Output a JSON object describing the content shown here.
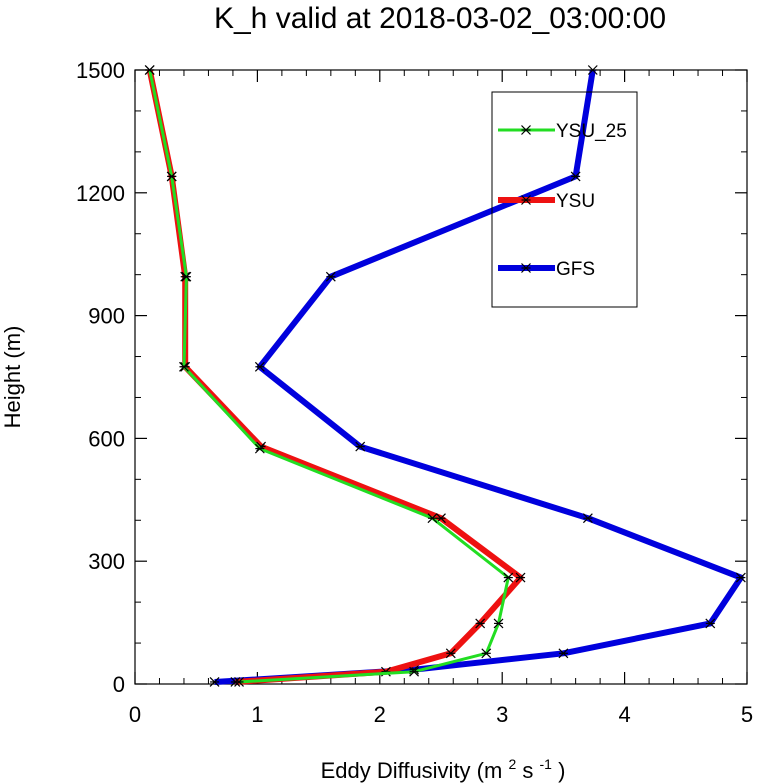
{
  "chart_data": {
    "type": "line",
    "title": "K_h valid at 2018-03-02_03:00:00",
    "xlabel_main": "Eddy Diffusivity (m",
    "xlabel_sup1": "2",
    "xlabel_mid": " s",
    "xlabel_sup2": "-1",
    "xlabel_close": ")",
    "ylabel": "Height (m)",
    "xlim": [
      0,
      5
    ],
    "ylim": [
      0,
      1500
    ],
    "xticks": [
      0,
      1,
      2,
      3,
      4,
      5
    ],
    "yticks": [
      0,
      300,
      600,
      900,
      1200,
      1500
    ],
    "x_tick_labels": [
      "0",
      "1",
      "2",
      "3",
      "4",
      "5"
    ],
    "y_tick_labels": [
      "0",
      "300",
      "600",
      "900",
      "1200",
      "1500"
    ],
    "grid": false,
    "legend_position": "top-right",
    "series": [
      {
        "name": "YSU_25",
        "color": "#22dd22",
        "width": 3,
        "points": [
          [
            0.85,
            5
          ],
          [
            2.28,
            30
          ],
          [
            2.87,
            75
          ],
          [
            2.97,
            148
          ],
          [
            3.05,
            260
          ],
          [
            2.43,
            405
          ],
          [
            1.02,
            575
          ],
          [
            0.4,
            775
          ],
          [
            0.42,
            995
          ],
          [
            0.3,
            1240
          ],
          [
            0.12,
            1500
          ]
        ]
      },
      {
        "name": "YSU",
        "color": "#ee1111",
        "width": 6,
        "points": [
          [
            0.82,
            5
          ],
          [
            2.05,
            30
          ],
          [
            2.58,
            75
          ],
          [
            2.82,
            148
          ],
          [
            3.15,
            260
          ],
          [
            2.5,
            405
          ],
          [
            1.03,
            580
          ],
          [
            0.41,
            775
          ],
          [
            0.41,
            995
          ],
          [
            0.3,
            1240
          ],
          [
            0.12,
            1500
          ]
        ]
      },
      {
        "name": "GFS",
        "color": "#0000dd",
        "width": 6,
        "points": [
          [
            0.65,
            5
          ],
          [
            2.28,
            35
          ],
          [
            3.5,
            75
          ],
          [
            4.7,
            148
          ],
          [
            4.95,
            260
          ],
          [
            3.7,
            405
          ],
          [
            1.84,
            580
          ],
          [
            1.02,
            775
          ],
          [
            1.6,
            995
          ],
          [
            3.6,
            1240
          ],
          [
            3.74,
            1500
          ]
        ]
      }
    ]
  }
}
